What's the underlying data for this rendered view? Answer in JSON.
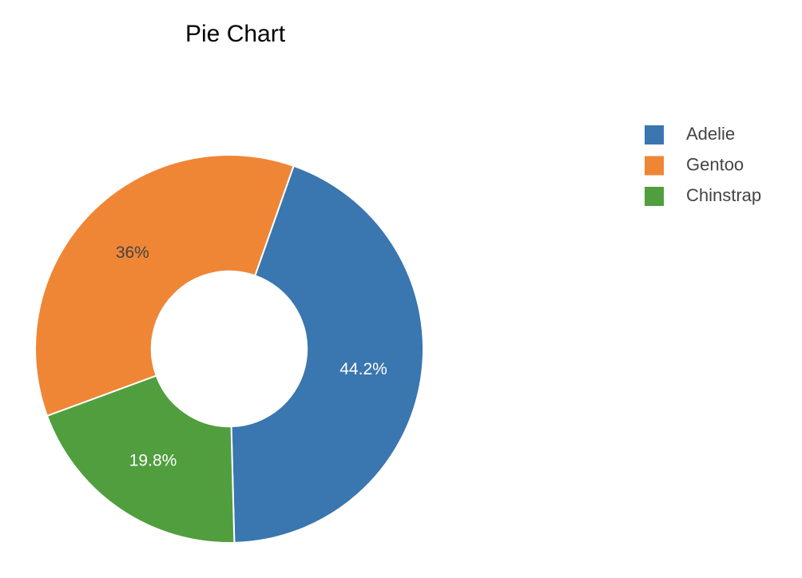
{
  "chart_data": {
    "type": "pie",
    "title": "Pie Chart",
    "categories": [
      "Adelie",
      "Gentoo",
      "Chinstrap"
    ],
    "values": [
      44.2,
      36,
      19.8
    ],
    "value_labels": [
      "44.2%",
      "36%",
      "19.8%"
    ],
    "colors": [
      "#3a76af",
      "#ef8636",
      "#519e3e"
    ],
    "hole": 0.4,
    "legend": "top-right"
  }
}
